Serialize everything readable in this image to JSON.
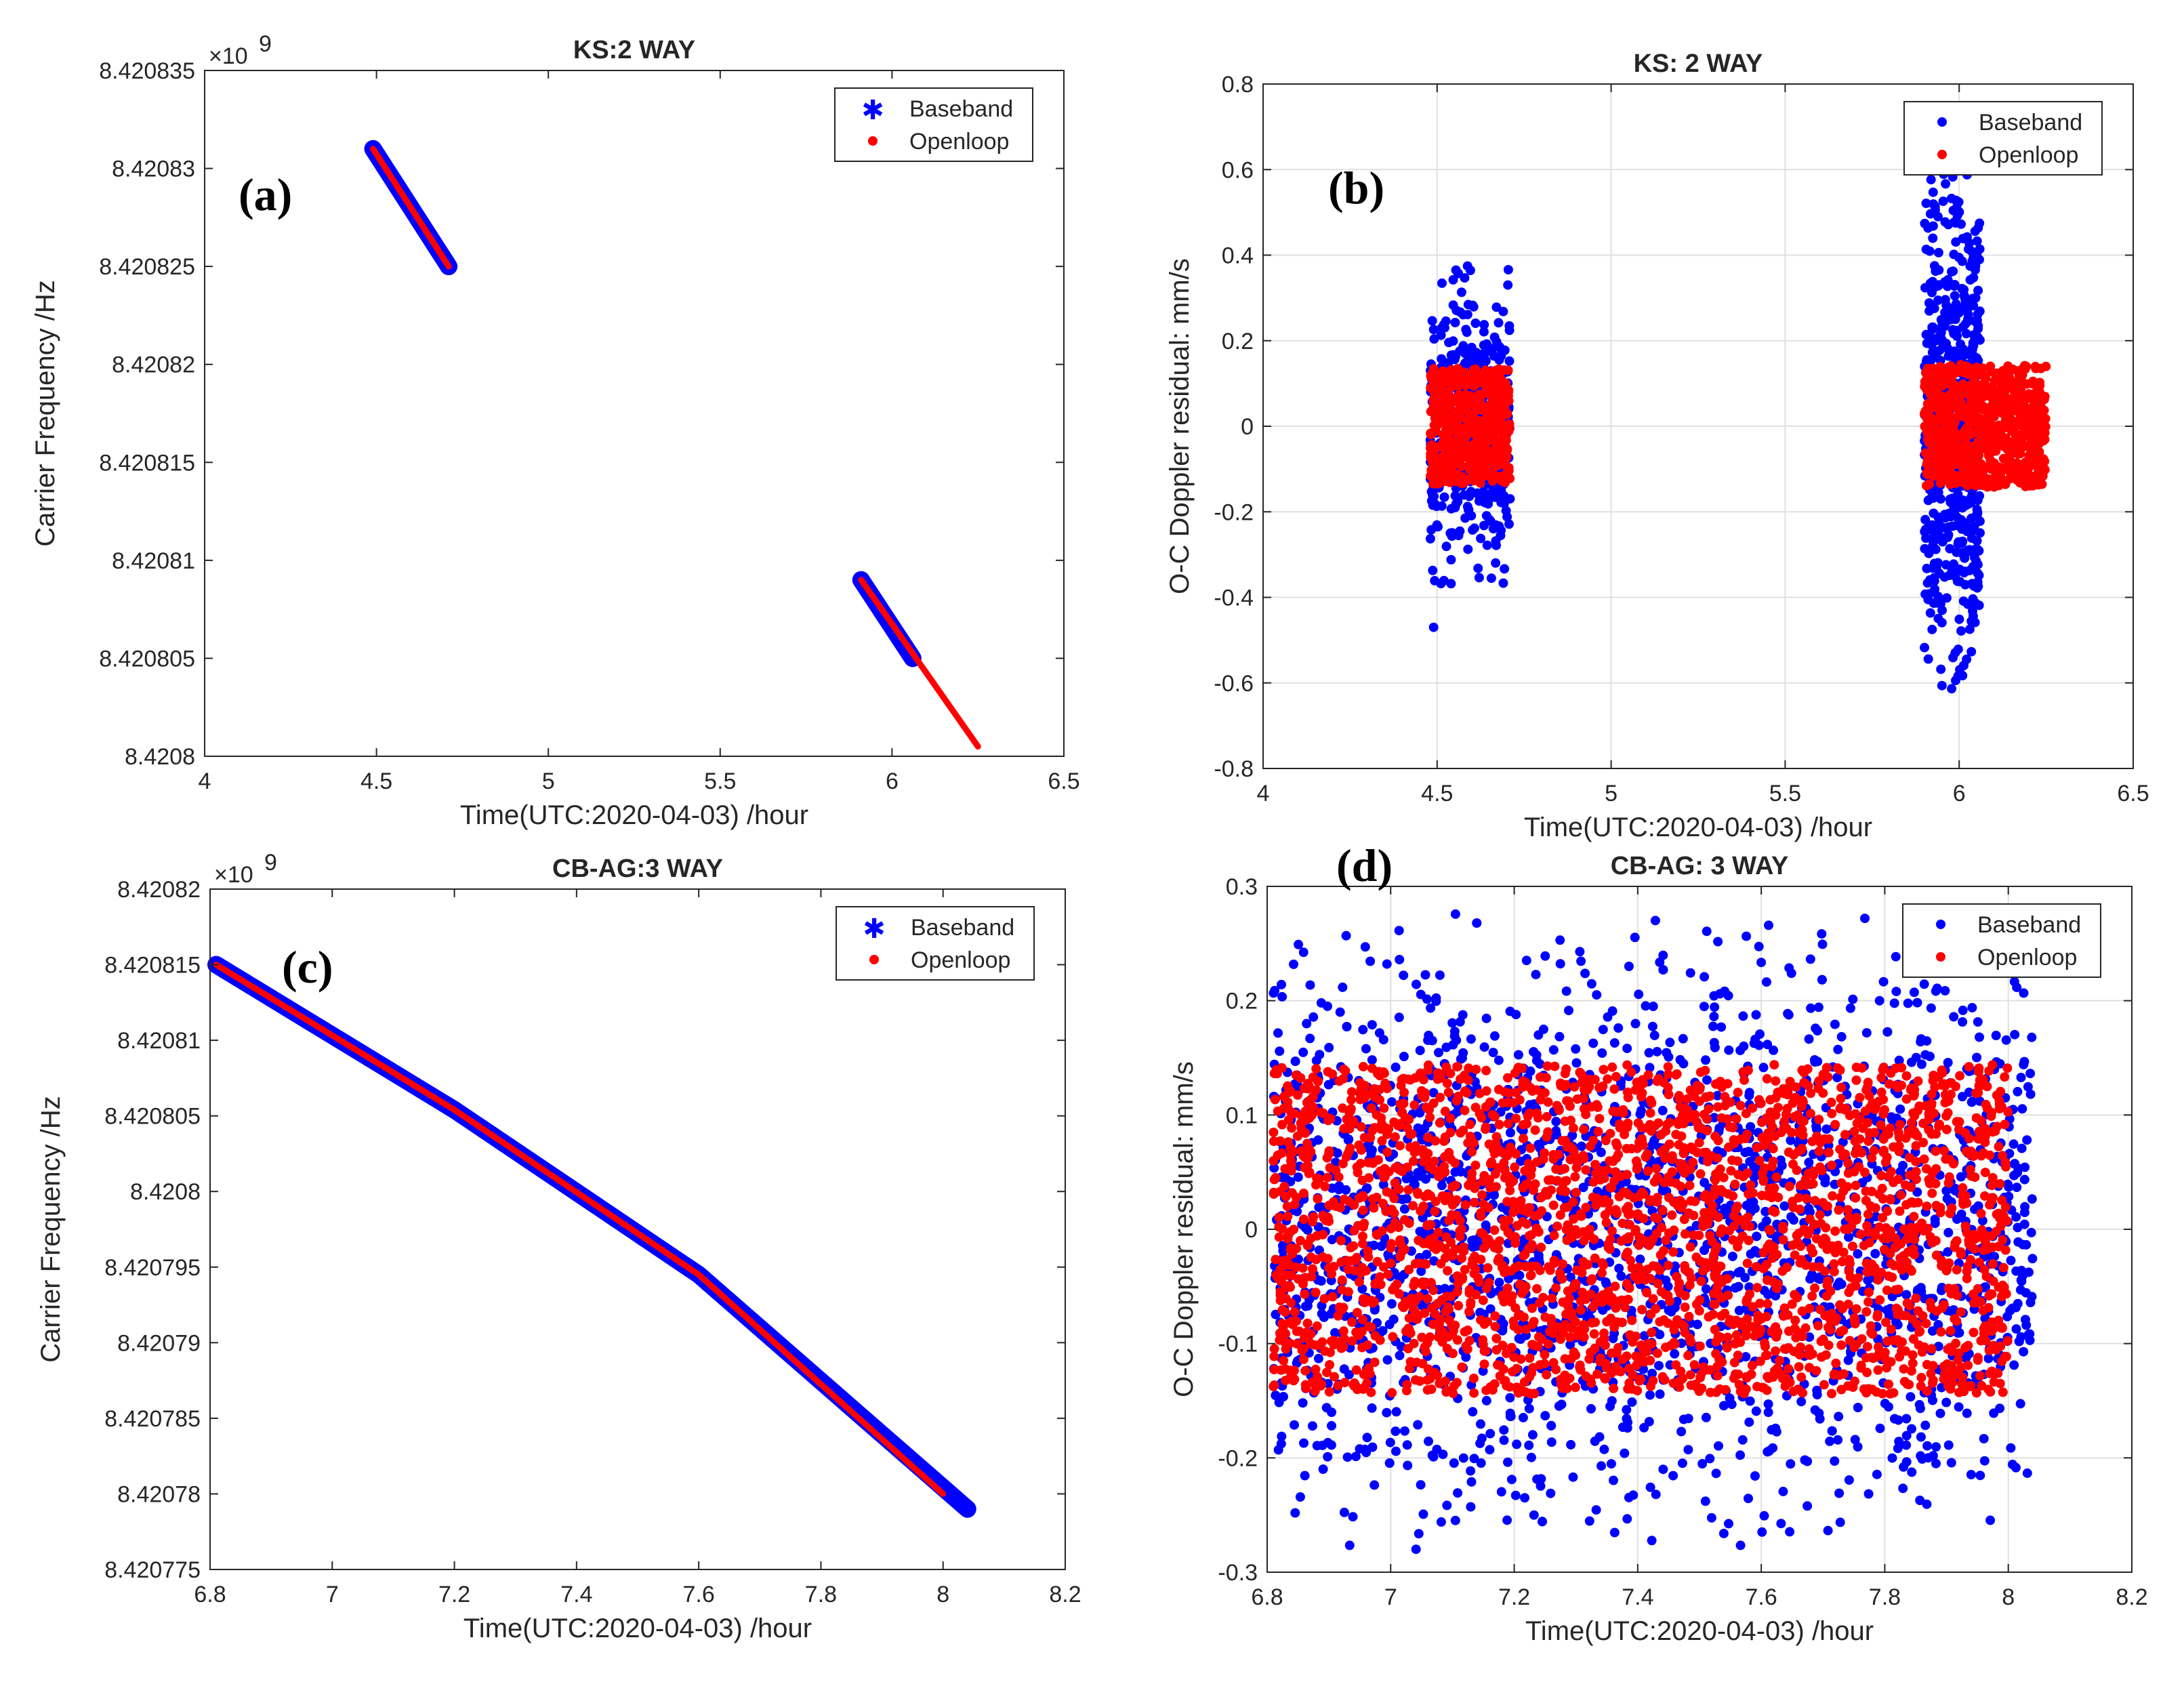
{
  "colors": {
    "baseband": "#0000ff",
    "openloop": "#ff0000",
    "grid": "#e0e0e0",
    "axis": "#262626"
  },
  "chart_data": [
    {
      "panel_label": "(a)",
      "type": "line",
      "title": "KS:2 WAY",
      "xlabel": "Time(UTC:2020-04-03) /hour",
      "ylabel": "Carrier Frequency /Hz",
      "exponent_label": "×10",
      "exponent_power": "9",
      "xlim": [
        4,
        6.5
      ],
      "ylim": [
        8.4208,
        8.420835
      ],
      "xticks": [
        "4",
        "4.5",
        "5",
        "5.5",
        "6",
        "6.5"
      ],
      "yticks": [
        "8.4208",
        "8.420805",
        "8.42081",
        "8.420815",
        "8.42082",
        "8.420825",
        "8.42083",
        "8.420835"
      ],
      "grid": false,
      "legend_position": "top-right",
      "series": [
        {
          "name": "Baseband",
          "marker": "asterisk",
          "segments": [
            {
              "x": [
                4.49,
                4.71
              ],
              "y": [
                8.420831,
                8.420825
              ]
            },
            {
              "x": [
                5.91,
                6.06
              ],
              "y": [
                8.420809,
                8.420805
              ]
            }
          ]
        },
        {
          "name": "Openloop",
          "marker": "dot",
          "segments": [
            {
              "x": [
                4.49,
                4.71
              ],
              "y": [
                8.420831,
                8.420825
              ]
            },
            {
              "x": [
                5.91,
                6.25
              ],
              "y": [
                8.420809,
                8.4208005
              ]
            }
          ]
        }
      ]
    },
    {
      "panel_label": "(b)",
      "type": "scatter",
      "title": "KS: 2 WAY",
      "xlabel": "Time(UTC:2020-04-03) /hour",
      "ylabel": "O-C Doppler residual: mm/s",
      "xlim": [
        4,
        6.5
      ],
      "ylim": [
        -0.8,
        0.8
      ],
      "xticks": [
        "4",
        "4.5",
        "5",
        "5.5",
        "6",
        "6.5"
      ],
      "yticks": [
        "-0.8",
        "-0.6",
        "-0.4",
        "-0.2",
        "0",
        "0.2",
        "0.4",
        "0.6",
        "0.8"
      ],
      "grid": true,
      "legend_position": "top-right",
      "series": [
        {
          "name": "Baseband",
          "clusters": [
            {
              "x_range": [
                4.48,
                4.71
              ],
              "y_spread": 0.38,
              "count": 420
            },
            {
              "x_range": [
                5.9,
                6.06
              ],
              "y_spread": 0.62,
              "count": 620
            }
          ],
          "outliers": [
            {
              "x": 4.49,
              "y": -0.47
            }
          ]
        },
        {
          "name": "Openloop",
          "clusters": [
            {
              "x_range": [
                4.48,
                4.71
              ],
              "y_spread": 0.15,
              "count": 480
            },
            {
              "x_range": [
                5.9,
                6.25
              ],
              "y_spread": 0.16,
              "count": 720
            }
          ]
        }
      ]
    },
    {
      "panel_label": "(c)",
      "type": "line",
      "title": "CB-AG:3 WAY",
      "xlabel": "Time(UTC:2020-04-03) /hour",
      "ylabel": "Carrier Frequency /Hz",
      "exponent_label": "×10",
      "exponent_power": "9",
      "xlim": [
        6.8,
        8.2
      ],
      "ylim": [
        8.420775,
        8.42082
      ],
      "xticks": [
        "6.8",
        "7",
        "7.2",
        "7.4",
        "7.6",
        "7.8",
        "8",
        "8.2"
      ],
      "yticks": [
        "8.420775",
        "8.42078",
        "8.420785",
        "8.42079",
        "8.420795",
        "8.4208",
        "8.420805",
        "8.42081",
        "8.420815",
        "8.42082"
      ],
      "grid": false,
      "legend_position": "top-right",
      "series": [
        {
          "name": "Baseband",
          "marker": "asterisk",
          "segments": [
            {
              "x": [
                6.81,
                7.2,
                7.6,
                8.04
              ],
              "y": [
                8.420815,
                8.4208054,
                8.4207945,
                8.420779
              ]
            }
          ]
        },
        {
          "name": "Openloop",
          "marker": "dot",
          "segments": [
            {
              "x": [
                6.81,
                7.2,
                7.6,
                8.0
              ],
              "y": [
                8.420815,
                8.4208054,
                8.4207945,
                8.42078
              ]
            }
          ]
        }
      ]
    },
    {
      "panel_label": "(d)",
      "type": "scatter",
      "title": "CB-AG: 3 WAY",
      "xlabel": "Time(UTC:2020-04-03) /hour",
      "ylabel": "O-C Doppler residual: mm/s",
      "xlim": [
        6.8,
        8.2
      ],
      "ylim": [
        -0.3,
        0.3
      ],
      "xticks": [
        "6.8",
        "7",
        "7.2",
        "7.4",
        "7.6",
        "7.8",
        "8",
        "8.2"
      ],
      "yticks": [
        "-0.3",
        "-0.2",
        "-0.1",
        "0",
        "0.1",
        "0.2",
        "0.3"
      ],
      "grid": true,
      "legend_position": "top-right",
      "series": [
        {
          "name": "Baseband",
          "clusters": [
            {
              "x_range": [
                6.81,
                8.04
              ],
              "y_spread": 0.28,
              "count": 2200
            }
          ]
        },
        {
          "name": "Openloop",
          "clusters": [
            {
              "x_range": [
                6.81,
                8.0
              ],
              "y_spread": 0.16,
              "count": 2600
            }
          ]
        }
      ]
    }
  ]
}
